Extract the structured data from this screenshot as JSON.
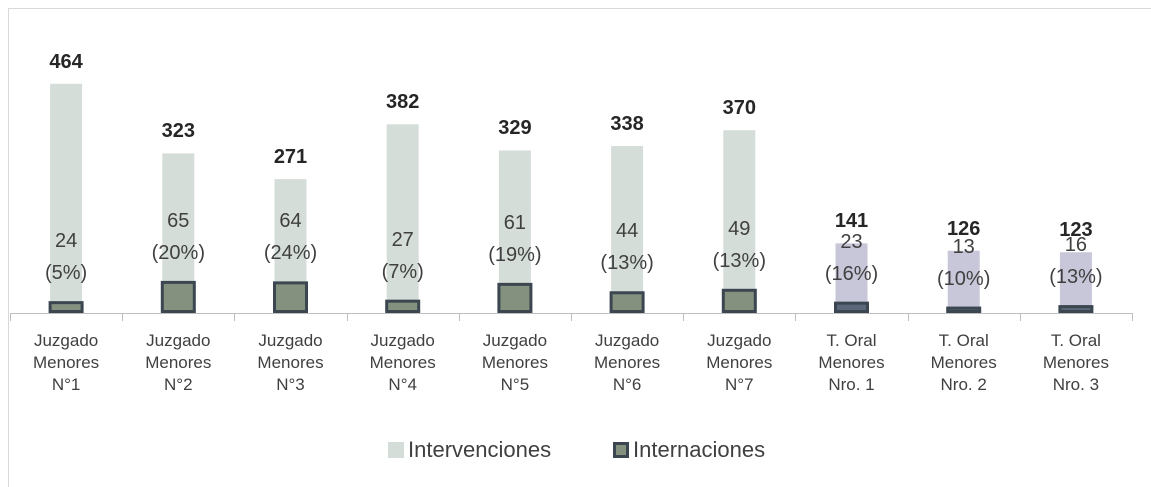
{
  "chart_data": {
    "type": "bar",
    "categories": [
      "Juzgado Menores N°1",
      "Juzgado Menores N°2",
      "Juzgado Menores N°3",
      "Juzgado Menores N°4",
      "Juzgado Menores N°5",
      "Juzgado Menores N°6",
      "Juzgado Menores N°7",
      "T. Oral Menores Nro. 1",
      "T. Oral Menores Nro. 2",
      "T. Oral Menores Nro. 3"
    ],
    "ylim": [
      0,
      500
    ],
    "legend": "bottom",
    "series": [
      {
        "name": "Intervenciones",
        "color": "#d5ddd8",
        "colors": [
          "#d5ddd8",
          "#d5ddd8",
          "#d5ddd8",
          "#d5ddd8",
          "#d5ddd8",
          "#d5ddd8",
          "#d5ddd8",
          "#c8c7da",
          "#c8c7da",
          "#c8c7da"
        ],
        "values": [
          464,
          323,
          271,
          382,
          329,
          338,
          370,
          141,
          126,
          123
        ]
      },
      {
        "name": "Internaciones",
        "color": "#84917f",
        "edgecolor": "#3b4650",
        "colors": [
          "#84917f",
          "#84917f",
          "#84917f",
          "#84917f",
          "#84917f",
          "#84917f",
          "#84917f",
          "#5a677a",
          "#5a677a",
          "#5a677a"
        ],
        "values": [
          24,
          65,
          64,
          27,
          61,
          44,
          49,
          23,
          13,
          16
        ],
        "value_labels": [
          "24 (5%)",
          "65 (20%)",
          "64 (24%)",
          "27 (7%)",
          "61 (19%)",
          "44 (13%)",
          "49 (13%)",
          "23 (16%)",
          "13 (10%)",
          "16 (13%)"
        ]
      }
    ]
  }
}
